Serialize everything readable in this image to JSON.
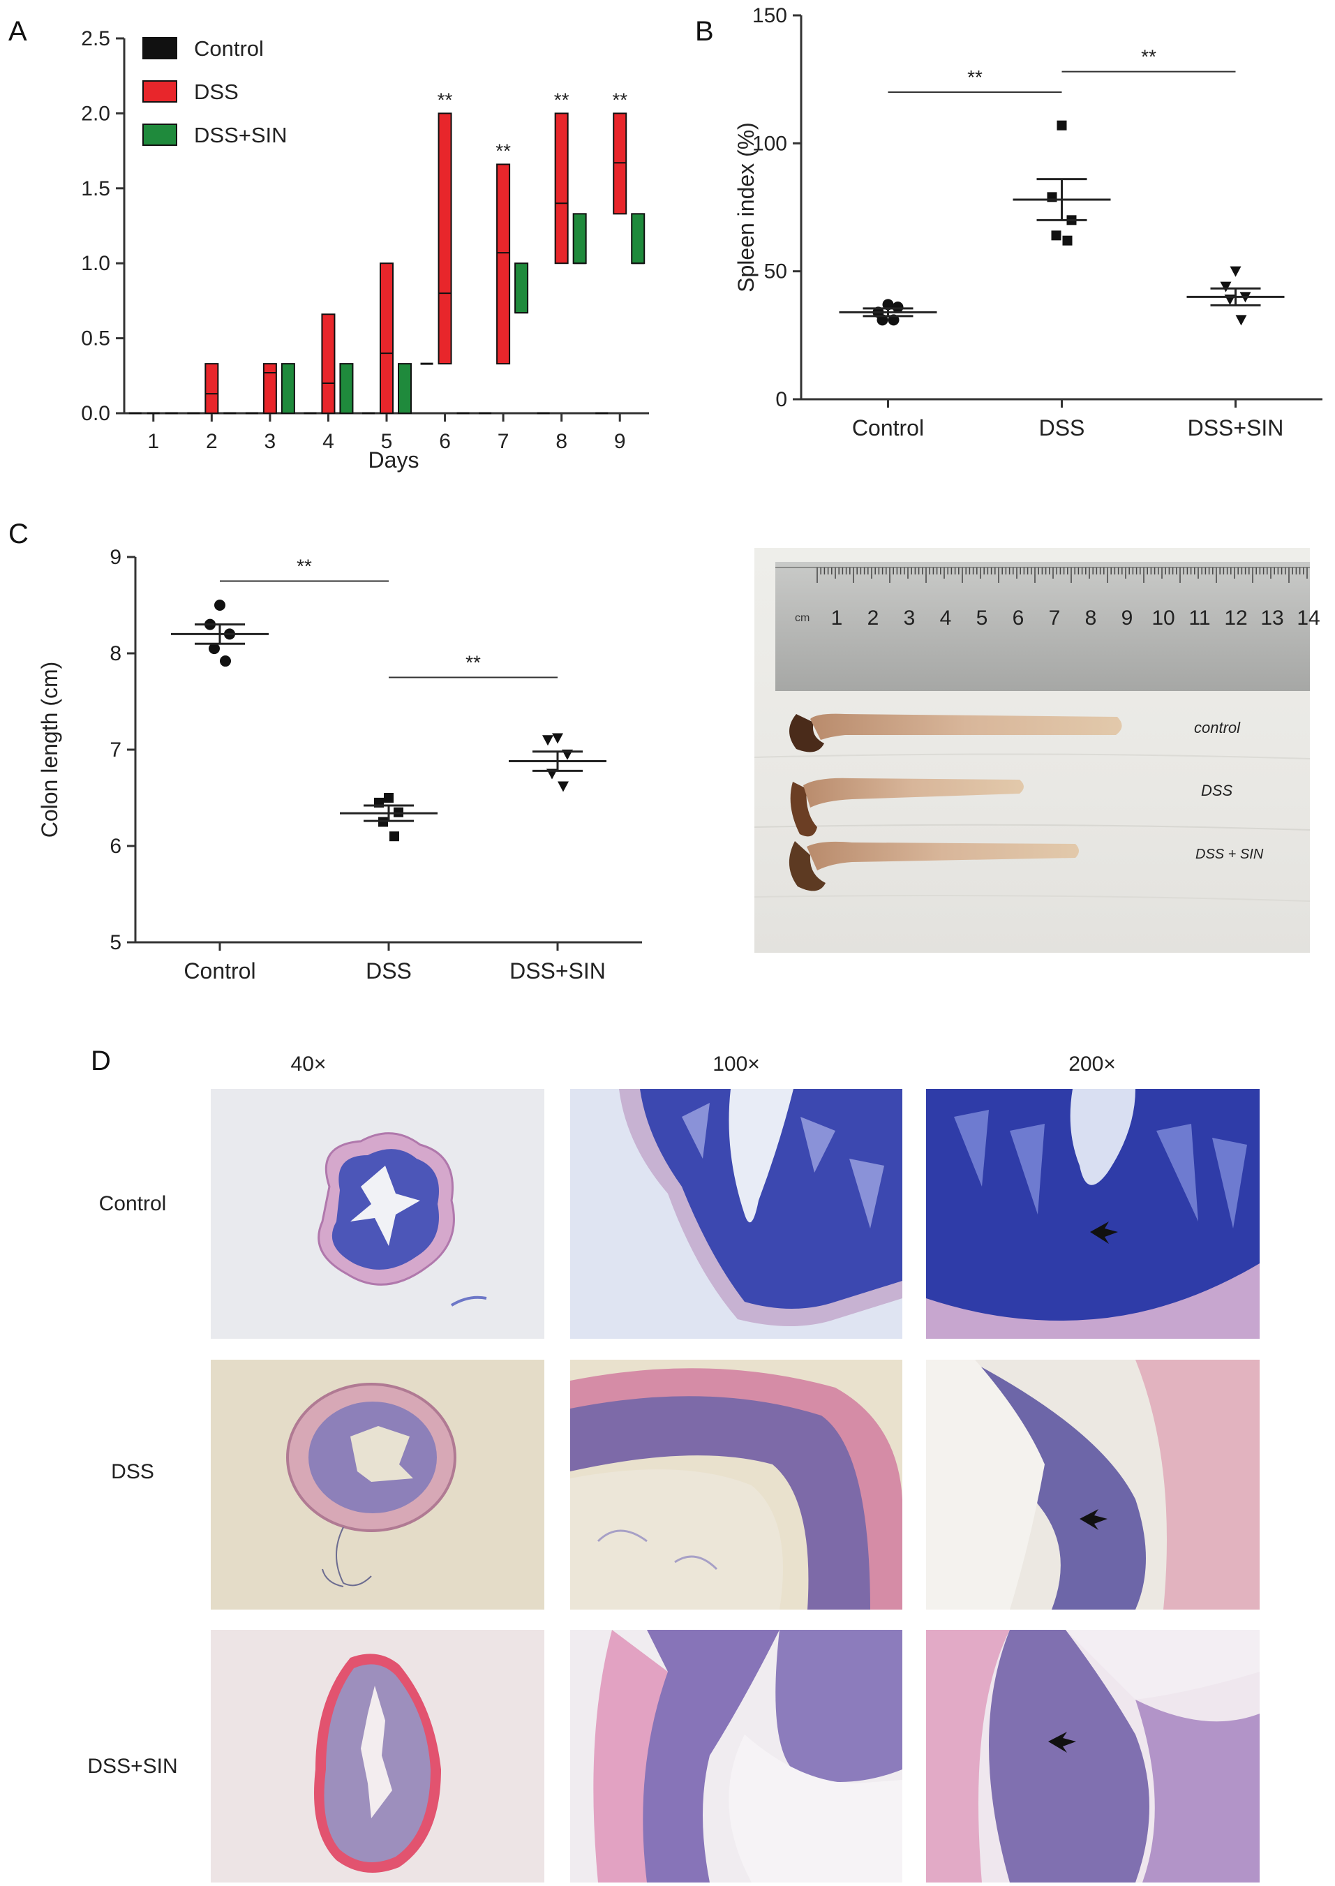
{
  "panels": {
    "A": "A",
    "B": "B",
    "C": "C",
    "D": "D"
  },
  "colors": {
    "control": "#111111",
    "dss": "#e8262b",
    "dss_sin": "#1f8a3c"
  },
  "chart_data": [
    {
      "panel": "A",
      "type": "bar",
      "xlabel": "Days",
      "ylabel": "",
      "ylim": [
        0,
        2.5
      ],
      "yticks": [
        "0.0",
        "0.5",
        "1.0",
        "1.5",
        "2.0",
        "2.5"
      ],
      "categories": [
        "1",
        "2",
        "3",
        "4",
        "5",
        "6",
        "7",
        "8",
        "9"
      ],
      "legend": [
        "Control",
        "DSS",
        "DSS+SIN"
      ],
      "legend_position": "top-left",
      "series": [
        {
          "name": "Control",
          "color": "#111111",
          "low": [
            0,
            0,
            0,
            0,
            0,
            0.33,
            0,
            0,
            0
          ],
          "high": [
            0,
            0,
            0,
            0,
            0,
            0.33,
            0,
            0,
            0
          ],
          "mean": [
            0,
            0,
            0,
            0,
            0,
            0.33,
            0,
            0,
            0
          ]
        },
        {
          "name": "DSS",
          "color": "#e8262b",
          "low": [
            0,
            0,
            0,
            0,
            0,
            0.33,
            0.33,
            1.0,
            1.33
          ],
          "high": [
            0,
            0.33,
            0.33,
            0.66,
            1.0,
            2.0,
            1.66,
            2.0,
            2.0
          ],
          "mean": [
            0,
            0.13,
            0.27,
            0.2,
            0.4,
            0.8,
            1.07,
            1.4,
            1.67
          ]
        },
        {
          "name": "DSS+SIN",
          "color": "#1f8a3c",
          "low": [
            0,
            0,
            0,
            0,
            0,
            0,
            0.67,
            1.0,
            1.0
          ],
          "high": [
            0,
            0,
            0.33,
            0.33,
            0.33,
            0,
            1.0,
            1.33,
            1.33
          ],
          "mean": [
            0,
            0,
            0,
            0,
            0,
            0,
            0.67,
            1.0,
            1.0
          ]
        }
      ],
      "significance": [
        {
          "day": "6",
          "label": "**"
        },
        {
          "day": "7",
          "label": "**"
        },
        {
          "day": "8",
          "label": "**"
        },
        {
          "day": "9",
          "label": "**"
        }
      ]
    },
    {
      "panel": "B",
      "type": "scatter",
      "ylabel": "Spleen index (%)",
      "ylim": [
        0,
        150
      ],
      "yticks": [
        "0",
        "50",
        "100",
        "150"
      ],
      "categories": [
        "Control",
        "DSS",
        "DSS+SIN"
      ],
      "series": [
        {
          "name": "Control",
          "marker": "circle",
          "points": [
            37,
            34,
            36,
            31,
            31
          ],
          "mean": 34,
          "sem": 1.5
        },
        {
          "name": "DSS",
          "marker": "square",
          "points": [
            107,
            79,
            70,
            64,
            62
          ],
          "mean": 78,
          "sem": 8
        },
        {
          "name": "DSS+SIN",
          "marker": "triangle-down",
          "points": [
            50,
            44,
            40,
            39,
            31
          ],
          "mean": 40,
          "sem": 3.3
        }
      ],
      "significance": [
        {
          "from": "Control",
          "to": "DSS",
          "label": "**",
          "y": 120
        },
        {
          "from": "DSS",
          "to": "DSS+SIN",
          "label": "**",
          "y": 128
        }
      ]
    },
    {
      "panel": "C",
      "type": "scatter",
      "ylabel": "Colon length (cm)",
      "ylim": [
        5,
        9
      ],
      "yticks": [
        "5",
        "6",
        "7",
        "8",
        "9"
      ],
      "categories": [
        "Control",
        "DSS",
        "DSS+SIN"
      ],
      "series": [
        {
          "name": "Control",
          "marker": "circle",
          "points": [
            8.5,
            8.3,
            8.2,
            8.05,
            7.92
          ],
          "mean": 8.2,
          "sem": 0.1
        },
        {
          "name": "DSS",
          "marker": "square",
          "points": [
            6.5,
            6.45,
            6.35,
            6.25,
            6.1
          ],
          "mean": 6.34,
          "sem": 0.08
        },
        {
          "name": "DSS+SIN",
          "marker": "triangle-down",
          "points": [
            7.12,
            7.1,
            6.95,
            6.75,
            6.62
          ],
          "mean": 6.88,
          "sem": 0.1
        }
      ],
      "significance": [
        {
          "from": "Control",
          "to": "DSS",
          "label": "**",
          "y": 8.75
        },
        {
          "from": "DSS",
          "to": "DSS+SIN",
          "label": "**",
          "y": 7.75
        }
      ]
    }
  ],
  "photo": {
    "ruler_unit": "cm",
    "ruler_numbers": [
      "1",
      "2",
      "3",
      "4",
      "5",
      "6",
      "7",
      "8",
      "9",
      "10",
      "11",
      "12",
      "13",
      "14"
    ],
    "labels": [
      "control",
      "DSS",
      "DSS + SIN"
    ]
  },
  "histology": {
    "columns": [
      "40×",
      "100×",
      "200×"
    ],
    "rows": [
      "Control",
      "DSS",
      "DSS+SIN"
    ]
  }
}
